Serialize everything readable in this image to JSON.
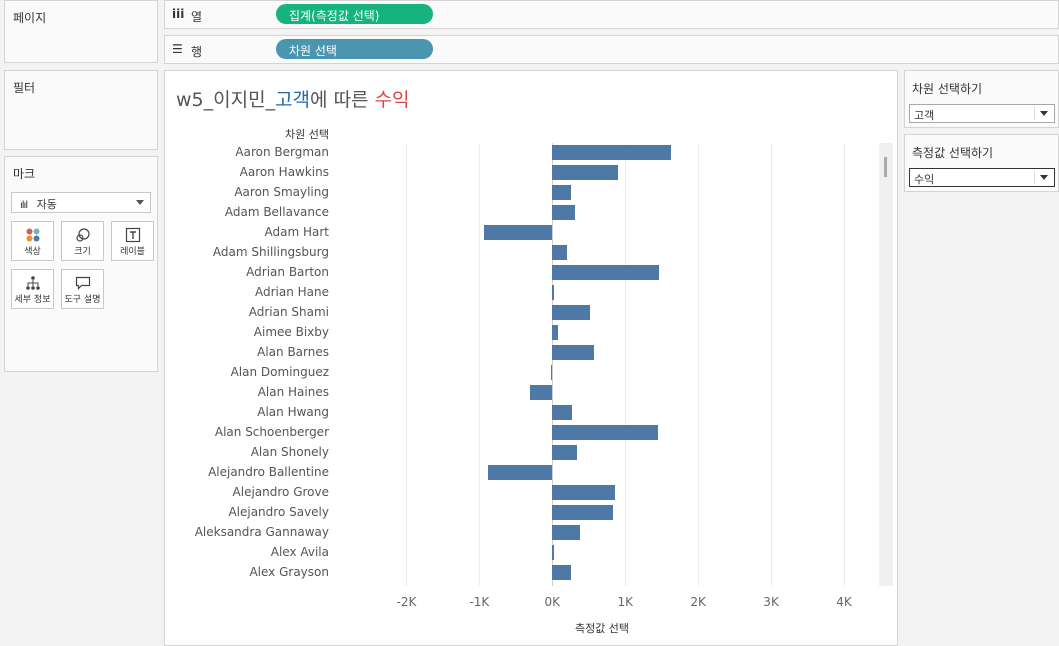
{
  "left_panels": {
    "pages_title": "페이지",
    "filters_title": "필터",
    "marks_title": "마크",
    "mark_type": "자동",
    "mark_buttons": [
      "색상",
      "크기",
      "레이블",
      "세부 정보",
      "도구 설명"
    ]
  },
  "shelves": {
    "columns": {
      "label": "열",
      "pill": "집계(측정값 선택)",
      "pill_color": "#16b37c"
    },
    "rows": {
      "label": "행",
      "pill": "차원 선택",
      "pill_color": "#4a96b1"
    }
  },
  "viz": {
    "title_prefix": "w5_이지민_",
    "title_dimension": "고객",
    "title_middle": "에 따른 ",
    "title_measure": "수익",
    "row_header": "차원 선택",
    "x_axis_title": "측정값 선택",
    "bar_color": "#4e79a7"
  },
  "parameters": {
    "dimension": {
      "title": "차원 선택하기",
      "value": "고객"
    },
    "measure": {
      "title": "측정값 선택하기",
      "value": "수익"
    }
  },
  "chart_data": {
    "type": "bar",
    "orientation": "horizontal",
    "categories": [
      "Aaron Bergman",
      "Aaron Hawkins",
      "Aaron Smayling",
      "Adam Bellavance",
      "Adam Hart",
      "Adam Shillingsburg",
      "Adrian Barton",
      "Adrian Hane",
      "Adrian Shami",
      "Aimee Bixby",
      "Alan Barnes",
      "Alan Dominguez",
      "Alan Haines",
      "Alan Hwang",
      "Alan Schoenberger",
      "Alan Shonely",
      "Alejandro Ballentine",
      "Alejandro Grove",
      "Alejandro Savely",
      "Aleksandra Gannaway",
      "Alex Avila",
      "Alex Grayson"
    ],
    "values": [
      1630,
      900,
      260,
      310,
      -940,
      200,
      1460,
      20,
      520,
      80,
      570,
      -20,
      -310,
      270,
      1450,
      340,
      -880,
      860,
      830,
      380,
      10,
      260
    ],
    "x_ticks": [
      -2000,
      -1000,
      0,
      1000,
      2000,
      3000,
      4000
    ],
    "x_tick_labels": [
      "-2K",
      "-1K",
      "0K",
      "1K",
      "2K",
      "3K",
      "4K"
    ],
    "xlim": [
      -2980,
      4480
    ],
    "xlabel": "측정값 선택",
    "ylabel": "차원 선택",
    "grid": true
  }
}
